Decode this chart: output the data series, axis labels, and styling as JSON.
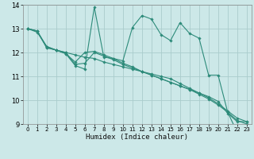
{
  "xlabel": "Humidex (Indice chaleur)",
  "ylabel": "",
  "bg_color": "#cce8e8",
  "grid_color": "#aacccc",
  "line_color": "#2d8b7a",
  "xlim": [
    -0.5,
    23.5
  ],
  "ylim": [
    9,
    14
  ],
  "xticks": [
    0,
    1,
    2,
    3,
    4,
    5,
    6,
    7,
    8,
    9,
    10,
    11,
    12,
    13,
    14,
    15,
    16,
    17,
    18,
    19,
    20,
    21,
    22,
    23
  ],
  "yticks": [
    9,
    10,
    11,
    12,
    13,
    14
  ],
  "lines": [
    {
      "x": [
        0,
        1,
        2,
        3,
        4,
        5,
        6,
        7,
        8,
        9,
        10,
        11,
        12,
        13,
        14,
        15,
        16,
        17,
        18,
        19,
        20,
        21,
        22,
        23
      ],
      "y": [
        13.0,
        12.9,
        12.2,
        12.1,
        11.95,
        11.45,
        11.3,
        13.9,
        11.8,
        11.75,
        11.65,
        13.05,
        13.55,
        13.4,
        12.75,
        12.5,
        13.25,
        12.8,
        12.6,
        11.05,
        11.05,
        9.5,
        8.65,
        8.7
      ]
    },
    {
      "x": [
        0,
        1,
        2,
        3,
        4,
        5,
        6,
        7,
        8,
        9,
        10,
        11,
        12,
        13,
        14,
        15,
        16,
        17,
        18,
        19,
        20,
        21,
        22,
        23
      ],
      "y": [
        13.0,
        12.9,
        12.2,
        12.1,
        12.0,
        11.5,
        11.55,
        12.0,
        11.85,
        11.7,
        11.5,
        11.35,
        11.2,
        11.05,
        10.9,
        10.75,
        10.6,
        10.45,
        10.3,
        10.15,
        9.95,
        9.45,
        9.1,
        9.1
      ]
    },
    {
      "x": [
        0,
        1,
        2,
        3,
        4,
        5,
        6,
        7,
        8,
        9,
        10,
        11,
        12,
        13,
        14,
        15,
        16,
        17,
        18,
        19,
        20,
        21,
        22,
        23
      ],
      "y": [
        13.0,
        12.9,
        12.25,
        12.1,
        11.95,
        11.6,
        12.0,
        12.05,
        11.9,
        11.75,
        11.55,
        11.4,
        11.2,
        11.05,
        10.9,
        10.75,
        10.6,
        10.45,
        10.25,
        10.05,
        9.8,
        9.5,
        9.15,
        9.0
      ]
    },
    {
      "x": [
        0,
        1,
        2,
        3,
        4,
        5,
        6,
        7,
        8,
        9,
        10,
        11,
        12,
        13,
        14,
        15,
        16,
        17,
        18,
        19,
        20,
        21,
        22,
        23
      ],
      "y": [
        13.0,
        12.85,
        12.25,
        12.1,
        12.0,
        11.9,
        11.8,
        11.75,
        11.6,
        11.5,
        11.4,
        11.3,
        11.2,
        11.1,
        11.0,
        10.9,
        10.7,
        10.5,
        10.3,
        10.1,
        9.85,
        9.55,
        9.25,
        9.1
      ]
    }
  ]
}
